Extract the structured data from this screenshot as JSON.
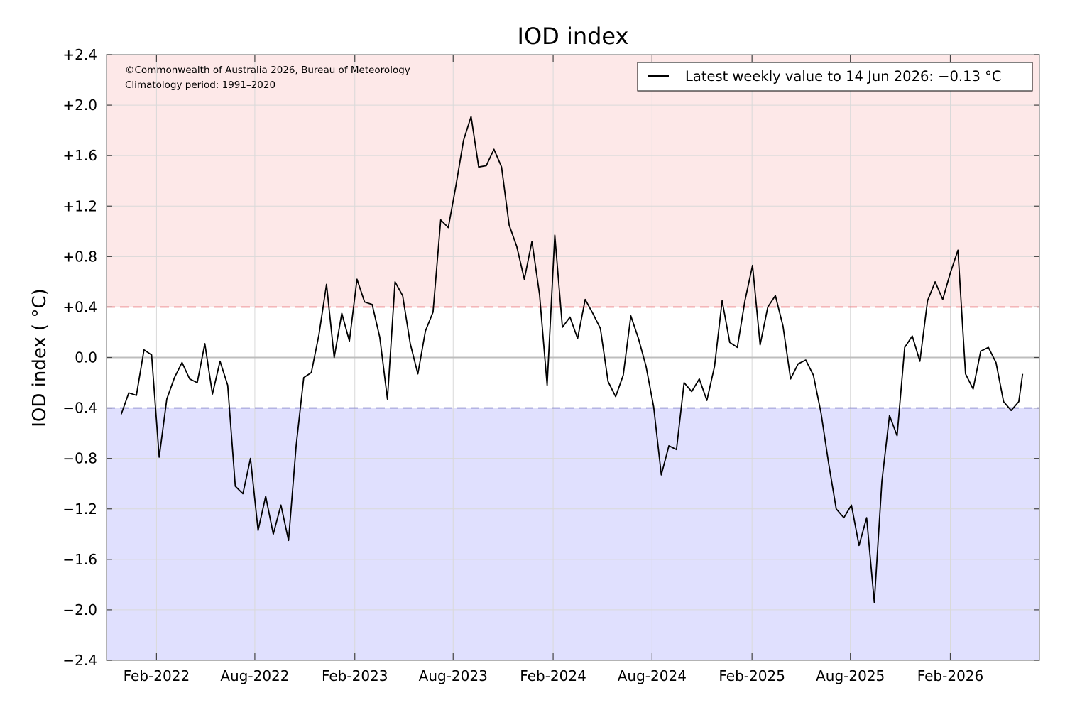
{
  "chart_data": {
    "type": "line",
    "title": "IOD index",
    "ylabel": "IOD index ( °C)",
    "xlabel": "",
    "ylim": [
      -2.4,
      2.4
    ],
    "yticks": [
      2.4,
      2.0,
      1.6,
      1.2,
      0.8,
      0.4,
      0.0,
      -0.4,
      -0.8,
      -1.2,
      -1.6,
      -2.0,
      -2.4
    ],
    "ytick_labels": [
      "+2.4",
      "+2.0",
      "+1.6",
      "+1.2",
      "+0.8",
      "+0.4",
      "0.0",
      "−0.4",
      "−0.8",
      "−1.2",
      "−1.6",
      "−2.0",
      "−2.4"
    ],
    "xlim": [
      "2021-11-01",
      "2026-07-15"
    ],
    "xticks": [
      "2022-02-01",
      "2022-08-01",
      "2023-02-01",
      "2023-08-01",
      "2024-02-01",
      "2024-08-01",
      "2025-02-01",
      "2025-08-01",
      "2026-02-01"
    ],
    "xtick_labels": [
      "Feb-2022",
      "Aug-2022",
      "Feb-2023",
      "Aug-2023",
      "Feb-2024",
      "Aug-2024",
      "Feb-2025",
      "Aug-2025",
      "Feb-2026"
    ],
    "grid": true,
    "thresholds": {
      "positive": 0.4,
      "negative": -0.4,
      "positive_line_color": "#e8646a",
      "negative_line_color": "#6a6aba",
      "positive_fill_color": "#fde8e8",
      "negative_fill_color": "#e0e0fe"
    },
    "annotations": [
      "©Commonwealth of Australia 2026, Bureau of Meteorology",
      "Climatology period: 1991–2020"
    ],
    "legend": {
      "position": "top-right",
      "entries": [
        "Latest weekly value to 14 Jun 2026: −0.13 °C"
      ]
    },
    "series": [
      {
        "color": "#000000",
        "x": [
          "2021-11-28",
          "2021-12-12",
          "2021-12-26",
          "2022-01-09",
          "2022-01-23",
          "2022-02-06",
          "2022-02-20",
          "2022-03-06",
          "2022-03-20",
          "2022-04-03",
          "2022-04-17",
          "2022-05-01",
          "2022-05-15",
          "2022-05-29",
          "2022-06-12",
          "2022-06-26",
          "2022-07-10",
          "2022-07-24",
          "2022-08-07",
          "2022-08-21",
          "2022-09-04",
          "2022-09-18",
          "2022-10-02",
          "2022-10-16",
          "2022-10-30",
          "2022-11-13",
          "2022-11-27",
          "2022-12-11",
          "2022-12-25",
          "2023-01-08",
          "2023-01-22",
          "2023-02-05",
          "2023-02-19",
          "2023-03-05",
          "2023-03-19",
          "2023-04-02",
          "2023-04-16",
          "2023-04-30",
          "2023-05-14",
          "2023-05-28",
          "2023-06-11",
          "2023-06-25",
          "2023-07-09",
          "2023-07-23",
          "2023-08-06",
          "2023-08-20",
          "2023-09-03",
          "2023-09-17",
          "2023-10-01",
          "2023-10-15",
          "2023-10-29",
          "2023-11-12",
          "2023-11-26",
          "2023-12-10",
          "2023-12-24",
          "2024-01-07",
          "2024-01-21",
          "2024-02-04",
          "2024-02-18",
          "2024-03-03",
          "2024-03-17",
          "2024-03-31",
          "2024-04-14",
          "2024-04-28",
          "2024-05-12",
          "2024-05-26",
          "2024-06-09",
          "2024-06-23",
          "2024-07-07",
          "2024-07-21",
          "2024-08-04",
          "2024-08-18",
          "2024-09-01",
          "2024-09-15",
          "2024-09-29",
          "2024-10-13",
          "2024-10-27",
          "2024-11-10",
          "2024-11-24",
          "2024-12-08",
          "2024-12-22",
          "2025-01-05",
          "2025-01-19",
          "2025-02-02",
          "2025-02-16",
          "2025-03-02",
          "2025-03-16",
          "2025-03-30",
          "2025-04-13",
          "2025-04-27",
          "2025-05-11",
          "2025-05-25",
          "2025-06-08",
          "2025-06-22",
          "2025-07-06",
          "2025-07-20",
          "2025-08-03",
          "2025-08-17",
          "2025-08-31",
          "2025-09-14",
          "2025-09-28",
          "2025-10-12",
          "2025-10-26",
          "2025-11-09",
          "2025-11-23",
          "2025-12-07",
          "2025-12-21",
          "2026-01-04",
          "2026-01-18",
          "2026-02-01",
          "2026-02-15",
          "2026-03-01",
          "2026-03-15",
          "2026-03-29",
          "2026-04-12",
          "2026-04-26",
          "2026-05-10",
          "2026-05-24",
          "2026-06-07",
          "2026-06-14"
        ],
        "values": [
          -0.45,
          -0.28,
          -0.3,
          0.06,
          0.02,
          -0.79,
          -0.33,
          -0.16,
          -0.04,
          -0.17,
          -0.2,
          0.11,
          -0.29,
          -0.03,
          -0.22,
          -1.02,
          -1.08,
          -0.8,
          -1.37,
          -1.1,
          -1.4,
          -1.17,
          -1.45,
          -0.7,
          -0.16,
          -0.12,
          0.18,
          0.58,
          0.0,
          0.35,
          0.13,
          0.62,
          0.44,
          0.42,
          0.16,
          -0.33,
          0.6,
          0.49,
          0.11,
          -0.13,
          0.21,
          0.36,
          1.09,
          1.03,
          1.36,
          1.72,
          1.91,
          1.51,
          1.52,
          1.65,
          1.51,
          1.05,
          0.88,
          0.62,
          0.92,
          0.5,
          -0.22,
          0.97,
          0.24,
          0.32,
          0.15,
          0.46,
          0.35,
          0.23,
          -0.19,
          -0.31,
          -0.14,
          0.33,
          0.15,
          -0.07,
          -0.39,
          -0.93,
          -0.7,
          -0.73,
          -0.2,
          -0.27,
          -0.17,
          -0.34,
          -0.07,
          0.45,
          0.12,
          0.08,
          0.45,
          0.73,
          0.1,
          0.4,
          0.49,
          0.25,
          -0.17,
          -0.05,
          -0.02,
          -0.14,
          -0.44,
          -0.84,
          -1.2,
          -1.27,
          -1.17,
          -1.49,
          -1.27,
          -1.94,
          -0.98,
          -0.46,
          -0.62,
          0.08,
          0.17,
          -0.03,
          0.45,
          0.6,
          0.46,
          0.67,
          0.85,
          -0.13,
          -0.25,
          0.05,
          0.08,
          -0.04,
          -0.35,
          -0.42,
          -0.35,
          -0.13
        ]
      }
    ]
  }
}
